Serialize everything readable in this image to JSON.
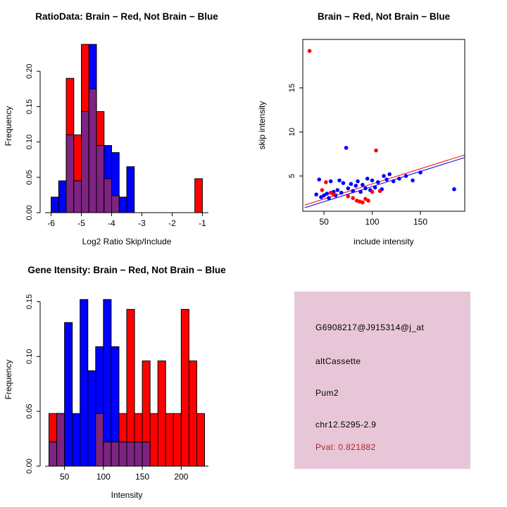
{
  "colors": {
    "red": "#ff0000",
    "blue": "#0000ff",
    "overlap": "#7d2381",
    "axis": "#000000",
    "background": "#ffffff"
  },
  "chart_data": [
    {
      "id": "ratio_hist",
      "type": "bar",
      "title": "RatioData: Brain − Red, Not Brain − Blue",
      "xlabel": "Log2 Ratio Skip/Include",
      "ylabel": "Frequency",
      "xlim": [
        -6.2,
        -0.8
      ],
      "ylim": [
        0,
        0.245
      ],
      "xticks": [
        -6,
        -5,
        -4,
        -3,
        -2,
        -1
      ],
      "xtick_labels": [
        "-6",
        "-5",
        "-4",
        "-3",
        "-2",
        "-1"
      ],
      "yticks": [
        0,
        0.05,
        0.1,
        0.15,
        0.2
      ],
      "ytick_labels": [
        "0.00",
        "0.05",
        "0.10",
        "0.15",
        "0.20"
      ],
      "bin_width": 0.25,
      "legend": [
        {
          "name": "Brain",
          "color": "#ff0000"
        },
        {
          "name": "Not Brain",
          "color": "#0000ff"
        }
      ],
      "bins": [
        {
          "x": -6.0,
          "red": 0,
          "blue": 0.022
        },
        {
          "x": -5.75,
          "red": 0,
          "blue": 0.045
        },
        {
          "x": -5.5,
          "red": 0.19,
          "blue": 0.11
        },
        {
          "x": -5.25,
          "red": 0.11,
          "blue": 0.045
        },
        {
          "x": -5.0,
          "red": 0.238,
          "blue": 0.143
        },
        {
          "x": -4.75,
          "red": 0.175,
          "blue": 0.238
        },
        {
          "x": -4.5,
          "red": 0.143,
          "blue": 0.095
        },
        {
          "x": -4.25,
          "red": 0.048,
          "blue": 0.095
        },
        {
          "x": -4.0,
          "red": 0.024,
          "blue": 0.085
        },
        {
          "x": -3.75,
          "red": 0,
          "blue": 0.022
        },
        {
          "x": -3.5,
          "red": 0,
          "blue": 0.065
        },
        {
          "x": -1.25,
          "red": 0.048,
          "blue": 0
        }
      ]
    },
    {
      "id": "scatter",
      "type": "scatter",
      "title": "Brain − Red, Not Brain − Blue",
      "xlabel": "include intensity",
      "ylabel": "skip intensity",
      "xlim": [
        28,
        196
      ],
      "ylim": [
        1,
        20.5
      ],
      "xticks": [
        50,
        100,
        150
      ],
      "xtick_labels": [
        "50",
        "100",
        "150"
      ],
      "yticks": [
        5,
        10,
        15
      ],
      "ytick_labels": [
        "5",
        "10",
        "15"
      ],
      "red_points": [
        [
          35,
          19.2
        ],
        [
          48,
          3.4
        ],
        [
          52,
          4.3
        ],
        [
          57,
          3.1
        ],
        [
          60,
          2.9
        ],
        [
          75,
          2.7
        ],
        [
          80,
          2.5
        ],
        [
          84,
          2.2
        ],
        [
          87,
          2.1
        ],
        [
          90,
          2.0
        ],
        [
          93,
          2.4
        ],
        [
          96,
          2.2
        ],
        [
          100,
          3.2
        ],
        [
          104,
          7.9
        ],
        [
          108,
          3.3
        ]
      ],
      "blue_points": [
        [
          42,
          2.9
        ],
        [
          45,
          4.6
        ],
        [
          47,
          2.6
        ],
        [
          50,
          2.8
        ],
        [
          53,
          3.0
        ],
        [
          55,
          2.5
        ],
        [
          57,
          4.4
        ],
        [
          60,
          3.2
        ],
        [
          62,
          2.8
        ],
        [
          64,
          3.4
        ],
        [
          66,
          4.5
        ],
        [
          68,
          3.1
        ],
        [
          70,
          4.2
        ],
        [
          73,
          8.2
        ],
        [
          75,
          3.6
        ],
        [
          78,
          4.1
        ],
        [
          80,
          3.3
        ],
        [
          83,
          3.9
        ],
        [
          85,
          4.4
        ],
        [
          88,
          3.2
        ],
        [
          90,
          4.0
        ],
        [
          93,
          3.6
        ],
        [
          95,
          4.7
        ],
        [
          98,
          3.4
        ],
        [
          100,
          4.5
        ],
        [
          103,
          3.7
        ],
        [
          106,
          4.3
        ],
        [
          110,
          3.5
        ],
        [
          112,
          5.0
        ],
        [
          115,
          4.6
        ],
        [
          118,
          5.2
        ],
        [
          122,
          4.4
        ],
        [
          128,
          4.7
        ],
        [
          135,
          5.0
        ],
        [
          142,
          4.5
        ],
        [
          150,
          5.4
        ],
        [
          185,
          3.5
        ]
      ],
      "red_line": {
        "x1": 30,
        "y1": 1.7,
        "x2": 196,
        "y2": 7.4
      },
      "blue_line": {
        "x1": 30,
        "y1": 1.4,
        "x2": 196,
        "y2": 7.1
      }
    },
    {
      "id": "gene_hist",
      "type": "bar",
      "title": "Gene Itensity: Brain − Red, Not Brain − Blue",
      "xlabel": "Intensity",
      "ylabel": "Frequency",
      "xlim": [
        25,
        235
      ],
      "ylim": [
        0,
        0.158
      ],
      "xticks": [
        50,
        100,
        150,
        200
      ],
      "xtick_labels": [
        "50",
        "100",
        "150",
        "200"
      ],
      "yticks": [
        0,
        0.05,
        0.1,
        0.15
      ],
      "ytick_labels": [
        "0.00",
        "0.05",
        "0.10",
        "0.15"
      ],
      "bin_width": 10,
      "legend": [
        {
          "name": "Brain",
          "color": "#ff0000"
        },
        {
          "name": "Not Brain",
          "color": "#0000ff"
        }
      ],
      "bins": [
        {
          "x": 30,
          "red": 0.048,
          "blue": 0.022
        },
        {
          "x": 40,
          "red": 0.048,
          "blue": 0.048
        },
        {
          "x": 50,
          "red": 0,
          "blue": 0.131
        },
        {
          "x": 60,
          "red": 0,
          "blue": 0.048
        },
        {
          "x": 70,
          "red": 0,
          "blue": 0.152
        },
        {
          "x": 80,
          "red": 0,
          "blue": 0.087
        },
        {
          "x": 90,
          "red": 0.048,
          "blue": 0.109
        },
        {
          "x": 100,
          "red": 0.022,
          "blue": 0.152
        },
        {
          "x": 110,
          "red": 0.022,
          "blue": 0.109
        },
        {
          "x": 120,
          "red": 0.048,
          "blue": 0.022
        },
        {
          "x": 130,
          "red": 0.143,
          "blue": 0.022
        },
        {
          "x": 140,
          "red": 0.048,
          "blue": 0.022
        },
        {
          "x": 150,
          "red": 0.096,
          "blue": 0.022
        },
        {
          "x": 160,
          "red": 0.048,
          "blue": 0
        },
        {
          "x": 170,
          "red": 0.096,
          "blue": 0
        },
        {
          "x": 180,
          "red": 0.048,
          "blue": 0
        },
        {
          "x": 190,
          "red": 0.048,
          "blue": 0
        },
        {
          "x": 200,
          "red": 0.143,
          "blue": 0
        },
        {
          "x": 210,
          "red": 0.096,
          "blue": 0
        },
        {
          "x": 220,
          "red": 0.048,
          "blue": 0
        }
      ]
    }
  ],
  "info_box": {
    "bg": "#e7c7d7",
    "pval_color": "#b22222",
    "lines": {
      "probe_id": "G6908217@J915314@j_at",
      "event_type": "altCassette",
      "gene": "Pum2",
      "locus": "chr12.5295-2.9",
      "pval": "Pval: 0.821882"
    }
  }
}
